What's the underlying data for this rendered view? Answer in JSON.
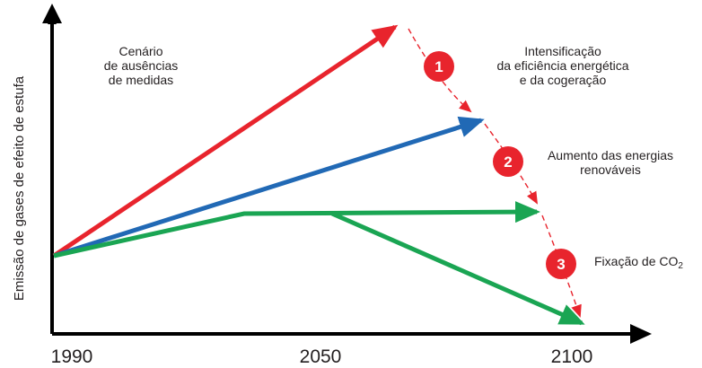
{
  "title": "",
  "y_axis_label": "Emissão de gases de efeito de estufa",
  "x_ticks": [
    "1990",
    "2050",
    "2100"
  ],
  "scenario_label": [
    "Cenário",
    "de ausências",
    "de medidas"
  ],
  "steps": [
    {
      "number": "1",
      "label": [
        "Intensificação",
        "da eficiência energética",
        "e da cogeração"
      ]
    },
    {
      "number": "2",
      "label": [
        "Aumento das energias",
        "renováveis"
      ]
    },
    {
      "number": "3",
      "label": [
        "Fixação de CO",
        "2"
      ]
    }
  ],
  "paths": [
    {
      "name": "no-measures",
      "color": "#e8242d"
    },
    {
      "name": "efficiency",
      "color": "#2169b5"
    },
    {
      "name": "renewables",
      "color": "#1aa553"
    },
    {
      "name": "co2-fixation",
      "color": "#1aa553"
    }
  ],
  "colors": {
    "axis": "#000000",
    "red": "#e8242d",
    "blue": "#2169b5",
    "green": "#1aa553",
    "text": "#231f20"
  }
}
